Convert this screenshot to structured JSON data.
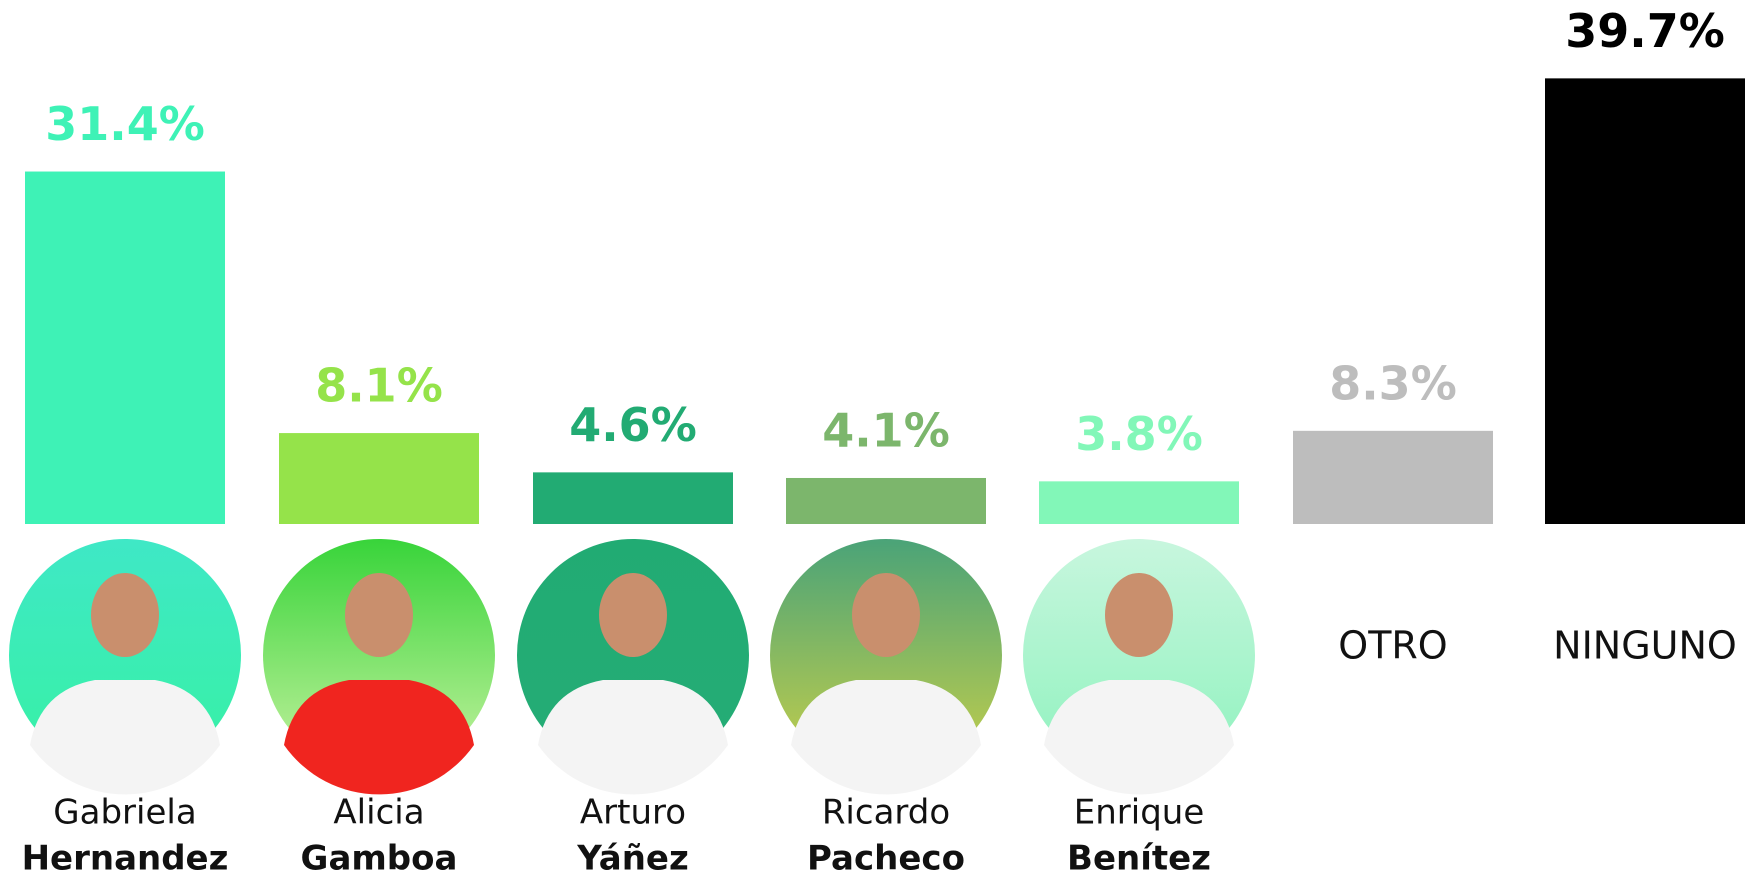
{
  "chart_data": {
    "type": "bar",
    "categories": [
      [
        "Gabriela",
        "Hernandez"
      ],
      [
        "Alicia",
        "Gamboa"
      ],
      [
        "Arturo",
        "Yáñez"
      ],
      [
        "Ricardo",
        "Pacheco"
      ],
      [
        "Enrique",
        "Benítez"
      ],
      [
        "OTRO"
      ],
      [
        "NINGUNO"
      ]
    ],
    "values": [
      31.4,
      8.1,
      4.6,
      4.1,
      3.8,
      8.3,
      39.7
    ],
    "value_labels": [
      "31.4%",
      "8.1%",
      "4.6%",
      "4.1%",
      "3.8%",
      "8.3%",
      "39.7%"
    ],
    "colors": [
      "#3ef2b6",
      "#95e34a",
      "#22ab73",
      "#7cb66c",
      "#82f7b8",
      "#bdbdbd",
      "#000000"
    ],
    "ylim": [
      0,
      40
    ]
  }
}
